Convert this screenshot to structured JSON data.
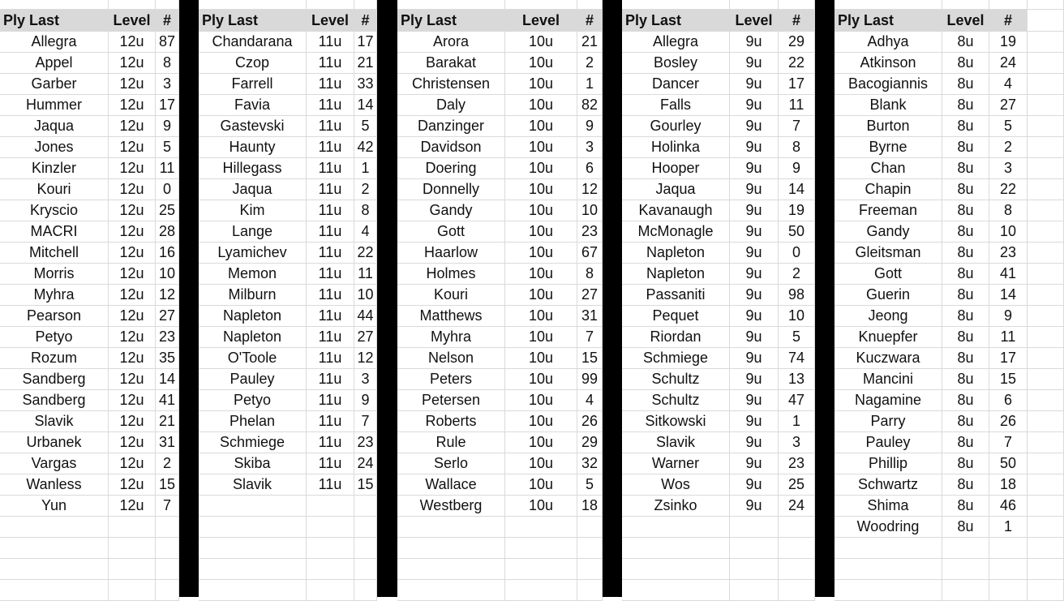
{
  "headers": {
    "name": "Ply Last",
    "level": "Level",
    "num": "#"
  },
  "groups": [
    {
      "rows": [
        [
          "Allegra",
          "12u",
          "87"
        ],
        [
          "Appel",
          "12u",
          "8"
        ],
        [
          "Garber",
          "12u",
          "3"
        ],
        [
          "Hummer",
          "12u",
          "17"
        ],
        [
          "Jaqua",
          "12u",
          "9"
        ],
        [
          "Jones",
          "12u",
          "5"
        ],
        [
          "Kinzler",
          "12u",
          "11"
        ],
        [
          "Kouri",
          "12u",
          "0"
        ],
        [
          "Kryscio",
          "12u",
          "25"
        ],
        [
          "MACRI",
          "12u",
          "28"
        ],
        [
          "Mitchell",
          "12u",
          "16"
        ],
        [
          "Morris",
          "12u",
          "10"
        ],
        [
          "Myhra",
          "12u",
          "12"
        ],
        [
          "Pearson",
          "12u",
          "27"
        ],
        [
          "Petyo",
          "12u",
          "23"
        ],
        [
          "Rozum",
          "12u",
          "35"
        ],
        [
          "Sandberg",
          "12u",
          "14"
        ],
        [
          "Sandberg",
          "12u",
          "41"
        ],
        [
          "Slavik",
          "12u",
          "21"
        ],
        [
          "Urbanek",
          "12u",
          "31"
        ],
        [
          "Vargas",
          "12u",
          "2"
        ],
        [
          "Wanless",
          "12u",
          "15"
        ],
        [
          "Yun",
          "12u",
          "7"
        ]
      ]
    },
    {
      "rows": [
        [
          "Chandarana",
          "11u",
          "17"
        ],
        [
          "Czop",
          "11u",
          "21"
        ],
        [
          "Farrell",
          "11u",
          "33"
        ],
        [
          "Favia",
          "11u",
          "14"
        ],
        [
          "Gastevski",
          "11u",
          "5"
        ],
        [
          "Haunty",
          "11u",
          "42"
        ],
        [
          "Hillegass",
          "11u",
          "1"
        ],
        [
          "Jaqua",
          "11u",
          "2"
        ],
        [
          "Kim",
          "11u",
          "8"
        ],
        [
          "Lange",
          "11u",
          "4"
        ],
        [
          "Lyamichev",
          "11u",
          "22"
        ],
        [
          "Memon",
          "11u",
          "11"
        ],
        [
          "Milburn",
          "11u",
          "10"
        ],
        [
          "Napleton",
          "11u",
          "44"
        ],
        [
          "Napleton",
          "11u",
          "27"
        ],
        [
          "O'Toole",
          "11u",
          "12"
        ],
        [
          "Pauley",
          "11u",
          "3"
        ],
        [
          "Petyo",
          "11u",
          "9"
        ],
        [
          "Phelan",
          "11u",
          "7"
        ],
        [
          "Schmiege",
          "11u",
          "23"
        ],
        [
          "Skiba",
          "11u",
          "24"
        ],
        [
          "Slavik",
          "11u",
          "15"
        ]
      ]
    },
    {
      "rows": [
        [
          "Arora",
          "10u",
          "21"
        ],
        [
          "Barakat",
          "10u",
          "2"
        ],
        [
          "Christensen",
          "10u",
          "1"
        ],
        [
          "Daly",
          "10u",
          "82"
        ],
        [
          "Danzinger",
          "10u",
          "9"
        ],
        [
          "Davidson",
          "10u",
          "3"
        ],
        [
          "Doering",
          "10u",
          "6"
        ],
        [
          "Donnelly",
          "10u",
          "12"
        ],
        [
          "Gandy",
          "10u",
          "10"
        ],
        [
          "Gott",
          "10u",
          "23"
        ],
        [
          "Haarlow",
          "10u",
          "67"
        ],
        [
          "Holmes",
          "10u",
          "8"
        ],
        [
          "Kouri",
          "10u",
          "27"
        ],
        [
          "Matthews",
          "10u",
          "31"
        ],
        [
          "Myhra",
          "10u",
          "7"
        ],
        [
          "Nelson",
          "10u",
          "15"
        ],
        [
          "Peters",
          "10u",
          "99"
        ],
        [
          "Petersen",
          "10u",
          "4"
        ],
        [
          "Roberts",
          "10u",
          "26"
        ],
        [
          "Rule",
          "10u",
          "29"
        ],
        [
          "Serlo",
          "10u",
          "32"
        ],
        [
          "Wallace",
          "10u",
          "5"
        ],
        [
          "Westberg",
          "10u",
          "18"
        ]
      ]
    },
    {
      "rows": [
        [
          "Allegra",
          "9u",
          "29"
        ],
        [
          "Bosley",
          "9u",
          "22"
        ],
        [
          "Dancer",
          "9u",
          "17"
        ],
        [
          "Falls",
          "9u",
          "11"
        ],
        [
          "Gourley",
          "9u",
          "7"
        ],
        [
          "Holinka",
          "9u",
          "8"
        ],
        [
          "Hooper",
          "9u",
          "9"
        ],
        [
          "Jaqua",
          "9u",
          "14"
        ],
        [
          "Kavanaugh",
          "9u",
          "19"
        ],
        [
          "McMonagle",
          "9u",
          "50"
        ],
        [
          "Napleton",
          "9u",
          "0"
        ],
        [
          "Napleton",
          "9u",
          "2"
        ],
        [
          "Passaniti",
          "9u",
          "98"
        ],
        [
          "Pequet",
          "9u",
          "10"
        ],
        [
          "Riordan",
          "9u",
          "5"
        ],
        [
          "Schmiege",
          "9u",
          "74"
        ],
        [
          "Schultz",
          "9u",
          "13"
        ],
        [
          "Schultz",
          "9u",
          "47"
        ],
        [
          "Sitkowski",
          "9u",
          "1"
        ],
        [
          "Slavik",
          "9u",
          "3"
        ],
        [
          "Warner",
          "9u",
          "23"
        ],
        [
          "Wos",
          "9u",
          "25"
        ],
        [
          "Zsinko",
          "9u",
          "24"
        ]
      ]
    },
    {
      "rows": [
        [
          "Adhya",
          "8u",
          "19"
        ],
        [
          "Atkinson",
          "8u",
          "24"
        ],
        [
          "Bacogiannis",
          "8u",
          "4"
        ],
        [
          "Blank",
          "8u",
          "27"
        ],
        [
          "Burton",
          "8u",
          "5"
        ],
        [
          "Byrne",
          "8u",
          "2"
        ],
        [
          "Chan",
          "8u",
          "3"
        ],
        [
          "Chapin",
          "8u",
          "22"
        ],
        [
          "Freeman",
          "8u",
          "8"
        ],
        [
          "Gandy",
          "8u",
          "10"
        ],
        [
          "Gleitsman",
          "8u",
          "23"
        ],
        [
          "Gott",
          "8u",
          "41"
        ],
        [
          "Guerin",
          "8u",
          "14"
        ],
        [
          "Jeong",
          "8u",
          "9"
        ],
        [
          "Knuepfer",
          "8u",
          "11"
        ],
        [
          "Kuczwara",
          "8u",
          "17"
        ],
        [
          "Mancini",
          "8u",
          "15"
        ],
        [
          "Nagamine",
          "8u",
          "6"
        ],
        [
          "Parry",
          "8u",
          "26"
        ],
        [
          "Pauley",
          "8u",
          "7"
        ],
        [
          "Phillip",
          "8u",
          "50"
        ],
        [
          "Schwartz",
          "8u",
          "18"
        ],
        [
          "Shima",
          "8u",
          "46"
        ],
        [
          "Woodring",
          "8u",
          "1"
        ]
      ]
    }
  ]
}
